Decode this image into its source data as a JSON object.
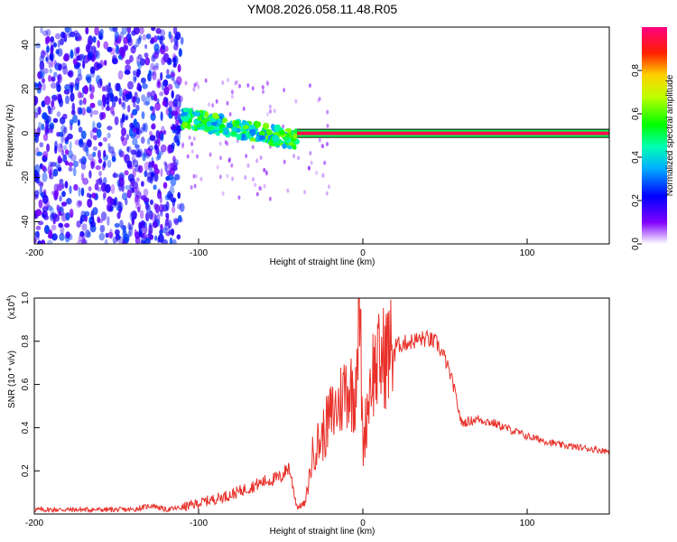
{
  "title": "YM08.2026.058.11.48.R05",
  "chart_data": [
    {
      "type": "heatmap",
      "title": "YM08.2026.058.11.48.R05",
      "xlabel": "Height of straight line (km)",
      "ylabel": "Frequency (Hz)",
      "xlim": [
        -200,
        150
      ],
      "ylim": [
        -50,
        48
      ],
      "xticks": [
        "-200",
        "-100",
        "0",
        "100"
      ],
      "yticks": [
        "40",
        "20",
        "0",
        "-20",
        "-40"
      ],
      "colorbar": {
        "label": "Normalized spectral amplitude",
        "range": [
          0.0,
          1.0
        ],
        "ticks": [
          "0.0",
          "0.2",
          "0.4",
          "0.6",
          "0.8"
        ]
      },
      "features": [
        {
          "name": "broadband noise",
          "x_range": [
            -200,
            -110
          ],
          "y_range": [
            -50,
            48
          ],
          "amplitude": 0.15
        },
        {
          "name": "narrowing band",
          "x_range": [
            -110,
            -40
          ],
          "freq_start": 7,
          "freq_end": -3,
          "amplitude": 0.45
        },
        {
          "name": "steady tone",
          "x_range": [
            -40,
            150
          ],
          "freq": 0,
          "amplitude": 0.95
        }
      ]
    },
    {
      "type": "line",
      "xlabel": "Height of straight line (km)",
      "ylabel": "SNR (10 * v/v)",
      "y_multiplier": "(x10",
      "y_multiplier_exp": "4",
      "xlim": [
        -200,
        150
      ],
      "ylim": [
        0,
        1.0
      ],
      "xticks": [
        "-200",
        "-100",
        "0",
        "100"
      ],
      "yticks": [
        "0.2",
        "0.4",
        "0.6",
        "0.8",
        "1.0"
      ],
      "series": [
        {
          "name": "SNR",
          "color": "#e8312a",
          "x": [
            -200,
            -180,
            -160,
            -140,
            -128,
            -120,
            -110,
            -100,
            -90,
            -80,
            -70,
            -60,
            -50,
            -45,
            -40,
            -35,
            -30,
            -25,
            -20,
            -15,
            -10,
            -5,
            -2,
            0,
            5,
            10,
            15,
            20,
            25,
            30,
            35,
            40,
            45,
            50,
            55,
            60,
            70,
            80,
            90,
            100,
            110,
            120,
            130,
            140,
            150
          ],
          "values": [
            0.02,
            0.02,
            0.02,
            0.02,
            0.04,
            0.02,
            0.03,
            0.05,
            0.07,
            0.09,
            0.12,
            0.15,
            0.17,
            0.22,
            0.03,
            0.05,
            0.3,
            0.35,
            0.45,
            0.5,
            0.6,
            0.55,
            1.0,
            0.3,
            0.65,
            0.7,
            0.75,
            0.78,
            0.79,
            0.8,
            0.81,
            0.81,
            0.79,
            0.72,
            0.6,
            0.42,
            0.44,
            0.42,
            0.39,
            0.36,
            0.34,
            0.32,
            0.31,
            0.3,
            0.29
          ]
        }
      ]
    }
  ]
}
